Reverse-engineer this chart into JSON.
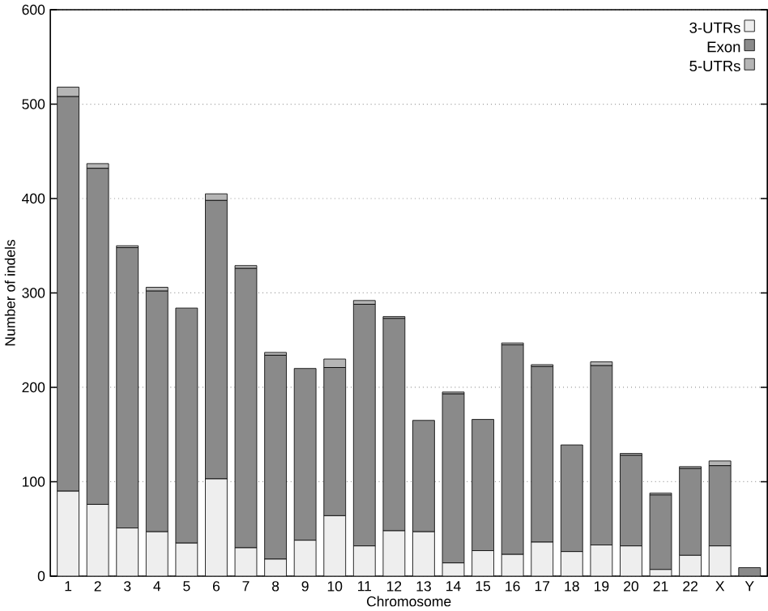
{
  "chart_data": {
    "type": "bar",
    "stacked": true,
    "xlabel": "Chromosome",
    "ylabel": "Number of indels",
    "categories": [
      "1",
      "2",
      "3",
      "4",
      "5",
      "6",
      "7",
      "8",
      "9",
      "10",
      "11",
      "12",
      "13",
      "14",
      "15",
      "16",
      "17",
      "18",
      "19",
      "20",
      "21",
      "22",
      "X",
      "Y"
    ],
    "series": [
      {
        "name": "3-UTRs",
        "color": "#eeeeee",
        "values": [
          90,
          76,
          51,
          47,
          35,
          103,
          30,
          18,
          38,
          64,
          32,
          48,
          47,
          14,
          27,
          23,
          36,
          26,
          33,
          32,
          7,
          22,
          32,
          0
        ]
      },
      {
        "name": "Exon",
        "color": "#8a8a8a",
        "values": [
          418,
          356,
          297,
          255,
          249,
          295,
          296,
          216,
          182,
          157,
          256,
          225,
          118,
          179,
          139,
          222,
          186,
          113,
          190,
          96,
          79,
          92,
          85,
          9
        ]
      },
      {
        "name": "5-UTRs",
        "color": "#b5b5b5",
        "values": [
          10,
          5,
          2,
          4,
          0,
          7,
          3,
          3,
          0,
          9,
          4,
          2,
          0,
          2,
          0,
          2,
          2,
          0,
          4,
          2,
          2,
          2,
          5,
          0
        ]
      }
    ],
    "ylim": [
      0,
      600
    ],
    "yticks": [
      0,
      100,
      200,
      300,
      400,
      500,
      600
    ],
    "grid": "y",
    "legend": "top right"
  }
}
